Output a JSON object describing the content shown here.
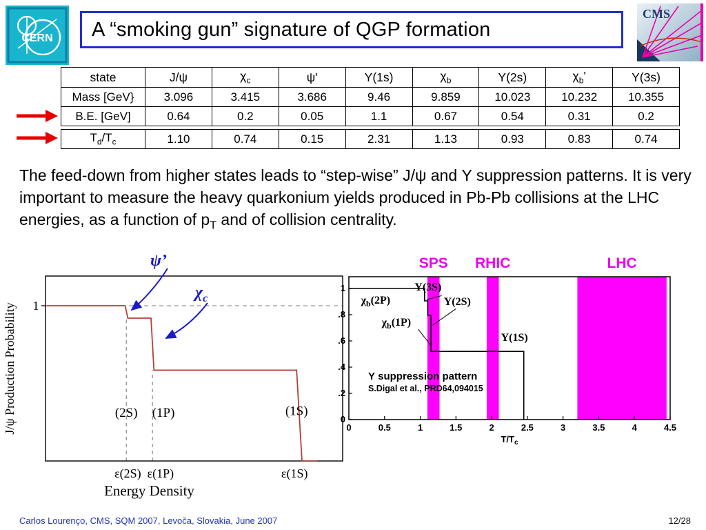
{
  "slide": {
    "title": "A “smoking gun” signature of QGP formation",
    "footer": "Carlos Lourenço, CMS, SQM 2007, Levoča, Slovakia, June 2007",
    "page": "12/28"
  },
  "logos": {
    "cern": "CERN",
    "cms": "CMS"
  },
  "table": {
    "headers": [
      [
        {
          "t": "state"
        }
      ],
      [
        {
          "t": "J/ψ"
        }
      ],
      [
        {
          "t": "χ"
        },
        {
          "t": "c",
          "sub": true
        }
      ],
      [
        {
          "t": "ψ'"
        }
      ],
      [
        {
          "t": "Υ(1s)"
        }
      ],
      [
        {
          "t": "χ"
        },
        {
          "t": "b",
          "sub": true
        }
      ],
      [
        {
          "t": "Υ(2s)"
        }
      ],
      [
        {
          "t": "χ"
        },
        {
          "t": "b",
          "sub": true
        },
        {
          "t": "'"
        }
      ],
      [
        {
          "t": "Υ(3s)"
        }
      ]
    ],
    "rows": [
      {
        "label": [
          {
            "t": "Mass [GeV}"
          }
        ],
        "values": [
          "3.096",
          "3.415",
          "3.686",
          "9.46",
          "9.859",
          "10.023",
          "10.232",
          "10.355"
        ]
      },
      {
        "label": [
          {
            "t": "B.E. [GeV]"
          }
        ],
        "values": [
          "0.64",
          "0.2",
          "0.05",
          "1.1",
          "0.67",
          "0.54",
          "0.31",
          "0.2"
        ]
      },
      {
        "label": [
          {
            "t": "T"
          },
          {
            "t": "d",
            "sub": true
          },
          {
            "t": "/T"
          },
          {
            "t": "c",
            "sub": true
          }
        ],
        "values": [
          "1.10",
          "0.74",
          "0.15",
          "2.31",
          "1.13",
          "0.93",
          "0.83",
          "0.74"
        ]
      }
    ]
  },
  "paragraph": {
    "part1": "The feed-down from higher states leads to “step-wise” J/ψ and Υ suppression patterns.  It is very important to measure the heavy quarkonium yields produced in Pb-Pb collisions at the LHC energies, as a function of p",
    "sub": "T",
    "part2": " and of collision centrality."
  },
  "chart_data": [
    {
      "id": "jpsi-suppression",
      "type": "line",
      "xlabel": "Energy Density",
      "ylabel": "J/ψ Production Probability",
      "ytick_label": "1",
      "ylim": [
        0,
        1.2
      ],
      "line_color": "#b0413a",
      "steps": [
        {
          "x": 0.004,
          "y": 1.0
        },
        {
          "x": 0.268,
          "y": 1.0
        },
        {
          "x": 0.277,
          "y": 0.92
        },
        {
          "x": 0.355,
          "y": 0.92
        },
        {
          "x": 0.365,
          "y": 0.585
        },
        {
          "x": 0.845,
          "y": 0.585
        },
        {
          "x": 0.863,
          "y": 0.0
        },
        {
          "x": 0.915,
          "y": 0.0
        }
      ],
      "dashed_guides": {
        "horizontal_y": 1.0,
        "verticals": [
          {
            "x": 0.272,
            "to_y": 0.92
          },
          {
            "x": 0.36,
            "to_y": 0.585
          }
        ]
      },
      "state_labels": [
        {
          "text": "(2S)",
          "x": 0.272,
          "y": 0.285
        },
        {
          "text": "(1P)",
          "x": 0.397,
          "y": 0.285
        },
        {
          "text": "(1S)",
          "x": 0.845,
          "y": 0.295
        }
      ],
      "threshold_labels": [
        {
          "text": "ε(2S)",
          "x": 0.277
        },
        {
          "text": "ε(1P)",
          "x": 0.387
        },
        {
          "text": "ε(1S)",
          "x": 0.838
        }
      ],
      "annotations": [
        {
          "text": "ψ’",
          "color": "#1a1ac8"
        },
        {
          "text": "χ",
          "sub": "c",
          "color": "#1a1ac8"
        }
      ]
    },
    {
      "id": "upsilon-suppression",
      "type": "line",
      "xlabel": {
        "base": "T/T",
        "sub": "c"
      },
      "xlim": [
        0,
        4.5
      ],
      "ylim": [
        0,
        1.09
      ],
      "xticks": [
        "0",
        "0.5",
        "1",
        "1.5",
        "2",
        "2.5",
        "3",
        "3.5",
        "4",
        "4.5"
      ],
      "yticks": [
        "0",
        "0.2",
        "0.4",
        "0.6",
        "0.8",
        "1"
      ],
      "line_color": "#000000",
      "band_color": "#ff00ff",
      "band_label_color": "#ee00ee",
      "bands": [
        {
          "label": "SPS",
          "x0": 1.1,
          "x1": 1.27
        },
        {
          "label": "RHIC",
          "x0": 1.93,
          "x1": 2.1
        },
        {
          "label": "LHC",
          "x0": 3.2,
          "x1": 4.45
        }
      ],
      "steps": [
        {
          "x": 0,
          "y": 1.0
        },
        {
          "x": 1.06,
          "y": 1.0
        },
        {
          "x": 1.06,
          "y": 0.905
        },
        {
          "x": 1.105,
          "y": 0.905
        },
        {
          "x": 1.105,
          "y": 0.795
        },
        {
          "x": 1.15,
          "y": 0.795
        },
        {
          "x": 1.15,
          "y": 0.52
        },
        {
          "x": 2.45,
          "y": 0.52
        },
        {
          "x": 2.45,
          "y": 0.0
        }
      ],
      "leaders": [
        {
          "x1": 1.3,
          "y1": 0.945,
          "x2": 1.09,
          "y2": 0.915
        },
        {
          "x1": 1.5,
          "y1": 0.845,
          "x2": 1.175,
          "y2": 0.72
        },
        {
          "x1": 0.97,
          "y1": 0.69,
          "x2": 1.15,
          "y2": 0.565
        }
      ],
      "state_labels": [
        {
          "text": "Υ(3S)",
          "x": 0.92,
          "y": 0.985
        },
        {
          "text": "Υ(2S)",
          "x": 1.33,
          "y": 0.875
        },
        {
          "text": "χ",
          "sub": "b",
          "post": "(2P)",
          "x": 0.17,
          "y": 0.885
        },
        {
          "text": "χ",
          "sub": "b",
          "post": "(1P)",
          "x": 0.46,
          "y": 0.715
        },
        {
          "text": "Υ(1S)",
          "x": 2.13,
          "y": 0.6
        }
      ],
      "note_lines": [
        "Υ suppression pattern",
        "S.Digal et al., PRD64,094015"
      ]
    }
  ]
}
